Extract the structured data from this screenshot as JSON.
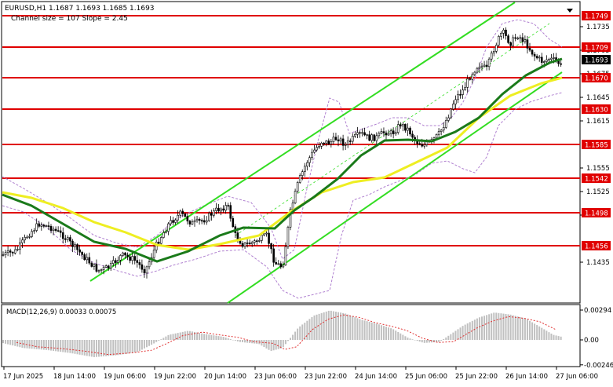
{
  "header": {
    "symbol_line": "EURUSD,H1  1.1687 1.1693 1.1685 1.1693",
    "channel_line": "Channel size = 107 Slope = 2.45"
  },
  "price_axis": {
    "ticks": [
      "1.1735",
      "1.1705",
      "1.1675",
      "1.1645",
      "1.1615",
      "1.1555",
      "1.1525",
      "1.1495",
      "1.1435"
    ],
    "level_labels": [
      "1.1749",
      "1.1709",
      "1.1670",
      "1.1630",
      "1.1585",
      "1.1542",
      "1.1498",
      "1.1456"
    ],
    "current_price": "1.1693",
    "level_color": "#e00000"
  },
  "macd": {
    "label": "MACD(12,26,9) 0.00033 0.00075",
    "ticks": [
      "0.00294",
      "0.00",
      "-0.00246"
    ]
  },
  "time_axis": {
    "labels": [
      "17 Jun 2025",
      "18 Jun 14:00",
      "19 Jun 06:00",
      "19 Jun 22:00",
      "20 Jun 14:00",
      "23 Jun 06:00",
      "23 Jun 22:00",
      "24 Jun 14:00",
      "25 Jun 06:00",
      "25 Jun 22:00",
      "26 Jun 14:00",
      "27 Jun 06:00"
    ]
  },
  "colors": {
    "channel": "#33dd22",
    "ma_fast": "#1a7a1a",
    "ma_slow": "#eeee22",
    "envelope": "#b080d0",
    "histogram": "#c0c0c0",
    "signal": "#e03030"
  },
  "chart_data": {
    "type": "candlestick",
    "symbol": "EURUSD",
    "timeframe": "H1",
    "ohlc_header": {
      "open": 1.1687,
      "high": 1.1693,
      "low": 1.1685,
      "close": 1.1693
    },
    "channel": {
      "size": 107,
      "slope": 2.45
    },
    "y_range": [
      1.1425,
      1.1765
    ],
    "horizontal_levels": [
      1.1749,
      1.1709,
      1.167,
      1.163,
      1.1585,
      1.1542,
      1.1498,
      1.1456
    ],
    "current_price": 1.1693,
    "macd": {
      "params": "12,26,9",
      "main": 0.00033,
      "signal": 0.00075,
      "range": [
        -0.00246,
        0.00294
      ]
    }
  }
}
